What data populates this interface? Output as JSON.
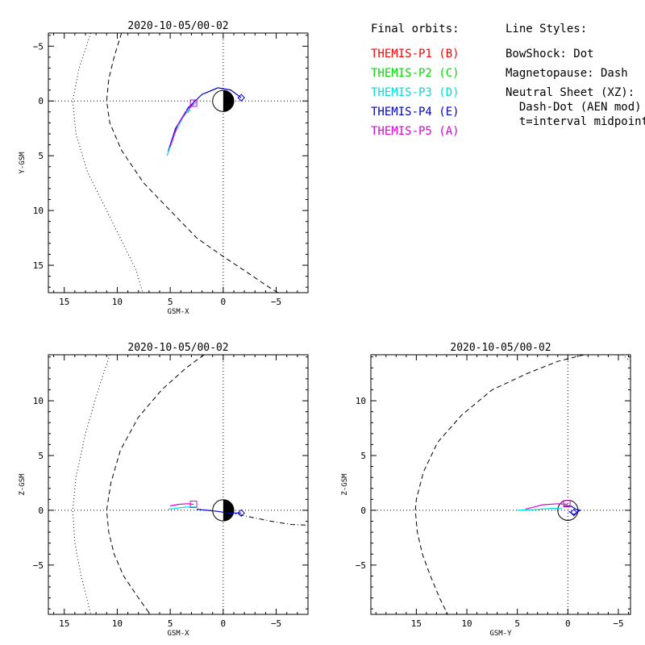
{
  "colors": {
    "p1": "#ff0000",
    "p2": "#00dd00",
    "p3": "#00dddd",
    "p4": "#0000cc",
    "p5": "#dd00dd",
    "ink": "#000000"
  },
  "legend": {
    "orbits_title": "Final orbits:",
    "probes": [
      {
        "label": "THEMIS-P1 (B)",
        "color_key": "p1"
      },
      {
        "label": "THEMIS-P2 (C)",
        "color_key": "p2"
      },
      {
        "label": "THEMIS-P3 (D)",
        "color_key": "p3"
      },
      {
        "label": "THEMIS-P4 (E)",
        "color_key": "p4"
      },
      {
        "label": "THEMIS-P5 (A)",
        "color_key": "p5"
      }
    ],
    "styles_title": "Line Styles:",
    "styles": [
      "BowShock: Dot",
      "Magnetopause: Dash",
      "Neutral Sheet (XZ):",
      "  Dash-Dot (AEN mod)",
      "  t=interval midpoint"
    ]
  },
  "chart_data": [
    {
      "type": "line",
      "title": "2020-10-05/00-02",
      "xlabel": "GSM-X",
      "ylabel": "Y-GSM",
      "xlim": [
        16.5,
        -8.0
      ],
      "ylim": [
        -6.2,
        17.5
      ],
      "y_inverted": true,
      "xticks": [
        15,
        10,
        5,
        0,
        -5
      ],
      "yticks": [
        -5,
        0,
        5,
        10,
        15
      ],
      "grid": "dotted lines at 0",
      "earth": "day-night disk at origin",
      "curves": {
        "bow_shock": {
          "style": "dot",
          "points": [
            [
              12.5,
              -6.2
            ],
            [
              13.6,
              -3
            ],
            [
              14.2,
              0
            ],
            [
              13.9,
              3
            ],
            [
              12.8,
              6.5
            ],
            [
              11,
              10
            ],
            [
              9.2,
              13.5
            ],
            [
              8.2,
              15.5
            ],
            [
              7.6,
              17.5
            ]
          ]
        },
        "magnetopause": {
          "style": "dash",
          "points": [
            [
              9.6,
              -6.2
            ],
            [
              10.3,
              -4
            ],
            [
              10.8,
              -2
            ],
            [
              11,
              0
            ],
            [
              10.7,
              2
            ],
            [
              9.6,
              4.5
            ],
            [
              7.5,
              7.5
            ],
            [
              5,
              10
            ],
            [
              2.5,
              12.5
            ],
            [
              0,
              14.2
            ],
            [
              -2.5,
              15.8
            ],
            [
              -4,
              16.8
            ],
            [
              -6,
              18
            ]
          ]
        }
      },
      "series": [
        {
          "color_key": "p4",
          "points": [
            [
              5.2,
              4.6
            ],
            [
              4.5,
              2.5
            ],
            [
              3.3,
              0.6
            ],
            [
              2.0,
              -0.6
            ],
            [
              0.5,
              -1.2
            ],
            [
              -0.7,
              -1.0
            ],
            [
              -1.7,
              -0.3
            ]
          ]
        },
        {
          "color_key": "p3",
          "points": [
            [
              5.3,
              5.0
            ],
            [
              4.6,
              3.0
            ],
            [
              3.8,
              1.5
            ],
            [
              3.0,
              0.5
            ],
            [
              2.5,
              0.1
            ]
          ]
        },
        {
          "color_key": "p5",
          "points": [
            [
              5.0,
              4.2
            ],
            [
              4.3,
              2.2
            ],
            [
              3.5,
              1.0
            ],
            [
              2.8,
              0.2
            ]
          ]
        }
      ],
      "markers": [
        {
          "color_key": "p5",
          "shape": "square",
          "x": 2.8,
          "y": 0.2
        },
        {
          "color_key": "p4",
          "shape": "diamond",
          "x": -1.7,
          "y": -0.3
        },
        {
          "color_key": "p3",
          "shape": "plus",
          "x": 3.3,
          "y": 0.9
        }
      ]
    },
    {
      "type": "line",
      "title": "2020-10-05/00-02",
      "xlabel": "GSM-X",
      "ylabel": "Z-GSM",
      "xlim": [
        16.5,
        -8.0
      ],
      "ylim": [
        -9.5,
        14.2
      ],
      "y_inverted": false,
      "xticks": [
        15,
        10,
        5,
        0,
        -5
      ],
      "yticks": [
        -5,
        0,
        5,
        10
      ],
      "grid": "dotted lines at 0",
      "earth": "day-night disk at origin",
      "curves": {
        "bow_shock": {
          "style": "dot",
          "points": [
            [
              10.7,
              14.2
            ],
            [
              11.8,
              11
            ],
            [
              13,
              7
            ],
            [
              13.9,
              3
            ],
            [
              14.2,
              0
            ],
            [
              14,
              -3
            ],
            [
              13.4,
              -6
            ],
            [
              12.5,
              -9.5
            ]
          ]
        },
        "magnetopause": {
          "style": "dash",
          "points": [
            [
              1.8,
              14.2
            ],
            [
              3.5,
              13
            ],
            [
              5.8,
              11
            ],
            [
              8,
              8.5
            ],
            [
              9.7,
              5.5
            ],
            [
              10.6,
              2.5
            ],
            [
              11,
              0
            ],
            [
              10.8,
              -2
            ],
            [
              10.3,
              -4
            ],
            [
              9.4,
              -6
            ],
            [
              8,
              -8
            ],
            [
              6.9,
              -9.5
            ]
          ]
        },
        "neutral_sheet": {
          "style": "dash-dot",
          "points": [
            [
              -0.5,
              -0.2
            ],
            [
              -1.5,
              -0.4
            ],
            [
              -2.5,
              -0.6
            ],
            [
              -3.5,
              -0.8
            ],
            [
              -4.5,
              -1.0
            ],
            [
              -5.5,
              -1.15
            ],
            [
              -6.5,
              -1.3
            ],
            [
              -8,
              -1.35
            ]
          ]
        }
      },
      "series": [
        {
          "color_key": "p5",
          "points": [
            [
              5.0,
              0.4
            ],
            [
              4.2,
              0.55
            ],
            [
              3.4,
              0.6
            ],
            [
              2.8,
              0.55
            ]
          ]
        },
        {
          "color_key": "p3",
          "points": [
            [
              5.2,
              0.1
            ],
            [
              4.3,
              0.2
            ],
            [
              3.5,
              0.3
            ],
            [
              2.6,
              0.3
            ]
          ]
        },
        {
          "color_key": "p4",
          "points": [
            [
              2.5,
              0.1
            ],
            [
              1.5,
              0.0
            ],
            [
              0.5,
              -0.1
            ],
            [
              -0.5,
              -0.25
            ],
            [
              -1.7,
              -0.25
            ]
          ]
        }
      ],
      "markers": [
        {
          "color_key": "p5",
          "shape": "square",
          "x": 2.8,
          "y": 0.55
        },
        {
          "color_key": "p4",
          "shape": "diamond",
          "x": -1.7,
          "y": -0.25
        }
      ]
    },
    {
      "type": "line",
      "title": "2020-10-05/00-02",
      "xlabel": "GSM-Y",
      "ylabel": "Z-GSM",
      "xlim": [
        19.5,
        -6.2
      ],
      "ylim": [
        -9.5,
        14.2
      ],
      "y_inverted": false,
      "xticks": [
        15,
        10,
        5,
        0,
        -5
      ],
      "yticks": [
        -5,
        0,
        5,
        10
      ],
      "grid": "dotted lines at 0",
      "earth": "outline circle at origin",
      "curves": {
        "magnetopause": {
          "style": "dash",
          "points": [
            [
              -1.6,
              14.2
            ],
            [
              1,
              13.6
            ],
            [
              4,
              12.5
            ],
            [
              7.5,
              11
            ],
            [
              10.5,
              8.7
            ],
            [
              12.9,
              6.2
            ],
            [
              14.3,
              3.5
            ],
            [
              15,
              1
            ],
            [
              15.1,
              0
            ],
            [
              14.9,
              -2
            ],
            [
              14.4,
              -4
            ],
            [
              13.6,
              -6
            ],
            [
              12.7,
              -8
            ],
            [
              11.9,
              -9.5
            ]
          ]
        },
        "bow_shock": {
          "style": "dot",
          "points": [
            [
              -5.4,
              14.2
            ],
            [
              -6.2,
              13.6
            ]
          ]
        }
      },
      "series": [
        {
          "color_key": "p5",
          "points": [
            [
              4.2,
              0.1
            ],
            [
              2.5,
              0.5
            ],
            [
              1.0,
              0.6
            ],
            [
              0.0,
              0.55
            ]
          ]
        },
        {
          "color_key": "p3",
          "points": [
            [
              5.0,
              0.0
            ],
            [
              3.5,
              0.05
            ],
            [
              2.0,
              0.15
            ],
            [
              0.6,
              0.2
            ]
          ]
        },
        {
          "color_key": "p4",
          "points": [
            [
              0.4,
              0.4
            ],
            [
              -0.3,
              0.4
            ],
            [
              -0.8,
              0.1
            ],
            [
              -1.2,
              0.0
            ],
            [
              -0.6,
              -0.4
            ],
            [
              -0.1,
              -0.1
            ]
          ]
        }
      ],
      "markers": [
        {
          "color_key": "p5",
          "shape": "square",
          "x": 0.1,
          "y": 0.6
        },
        {
          "color_key": "p4",
          "shape": "diamond",
          "x": -0.6,
          "y": -0.2
        }
      ]
    }
  ]
}
